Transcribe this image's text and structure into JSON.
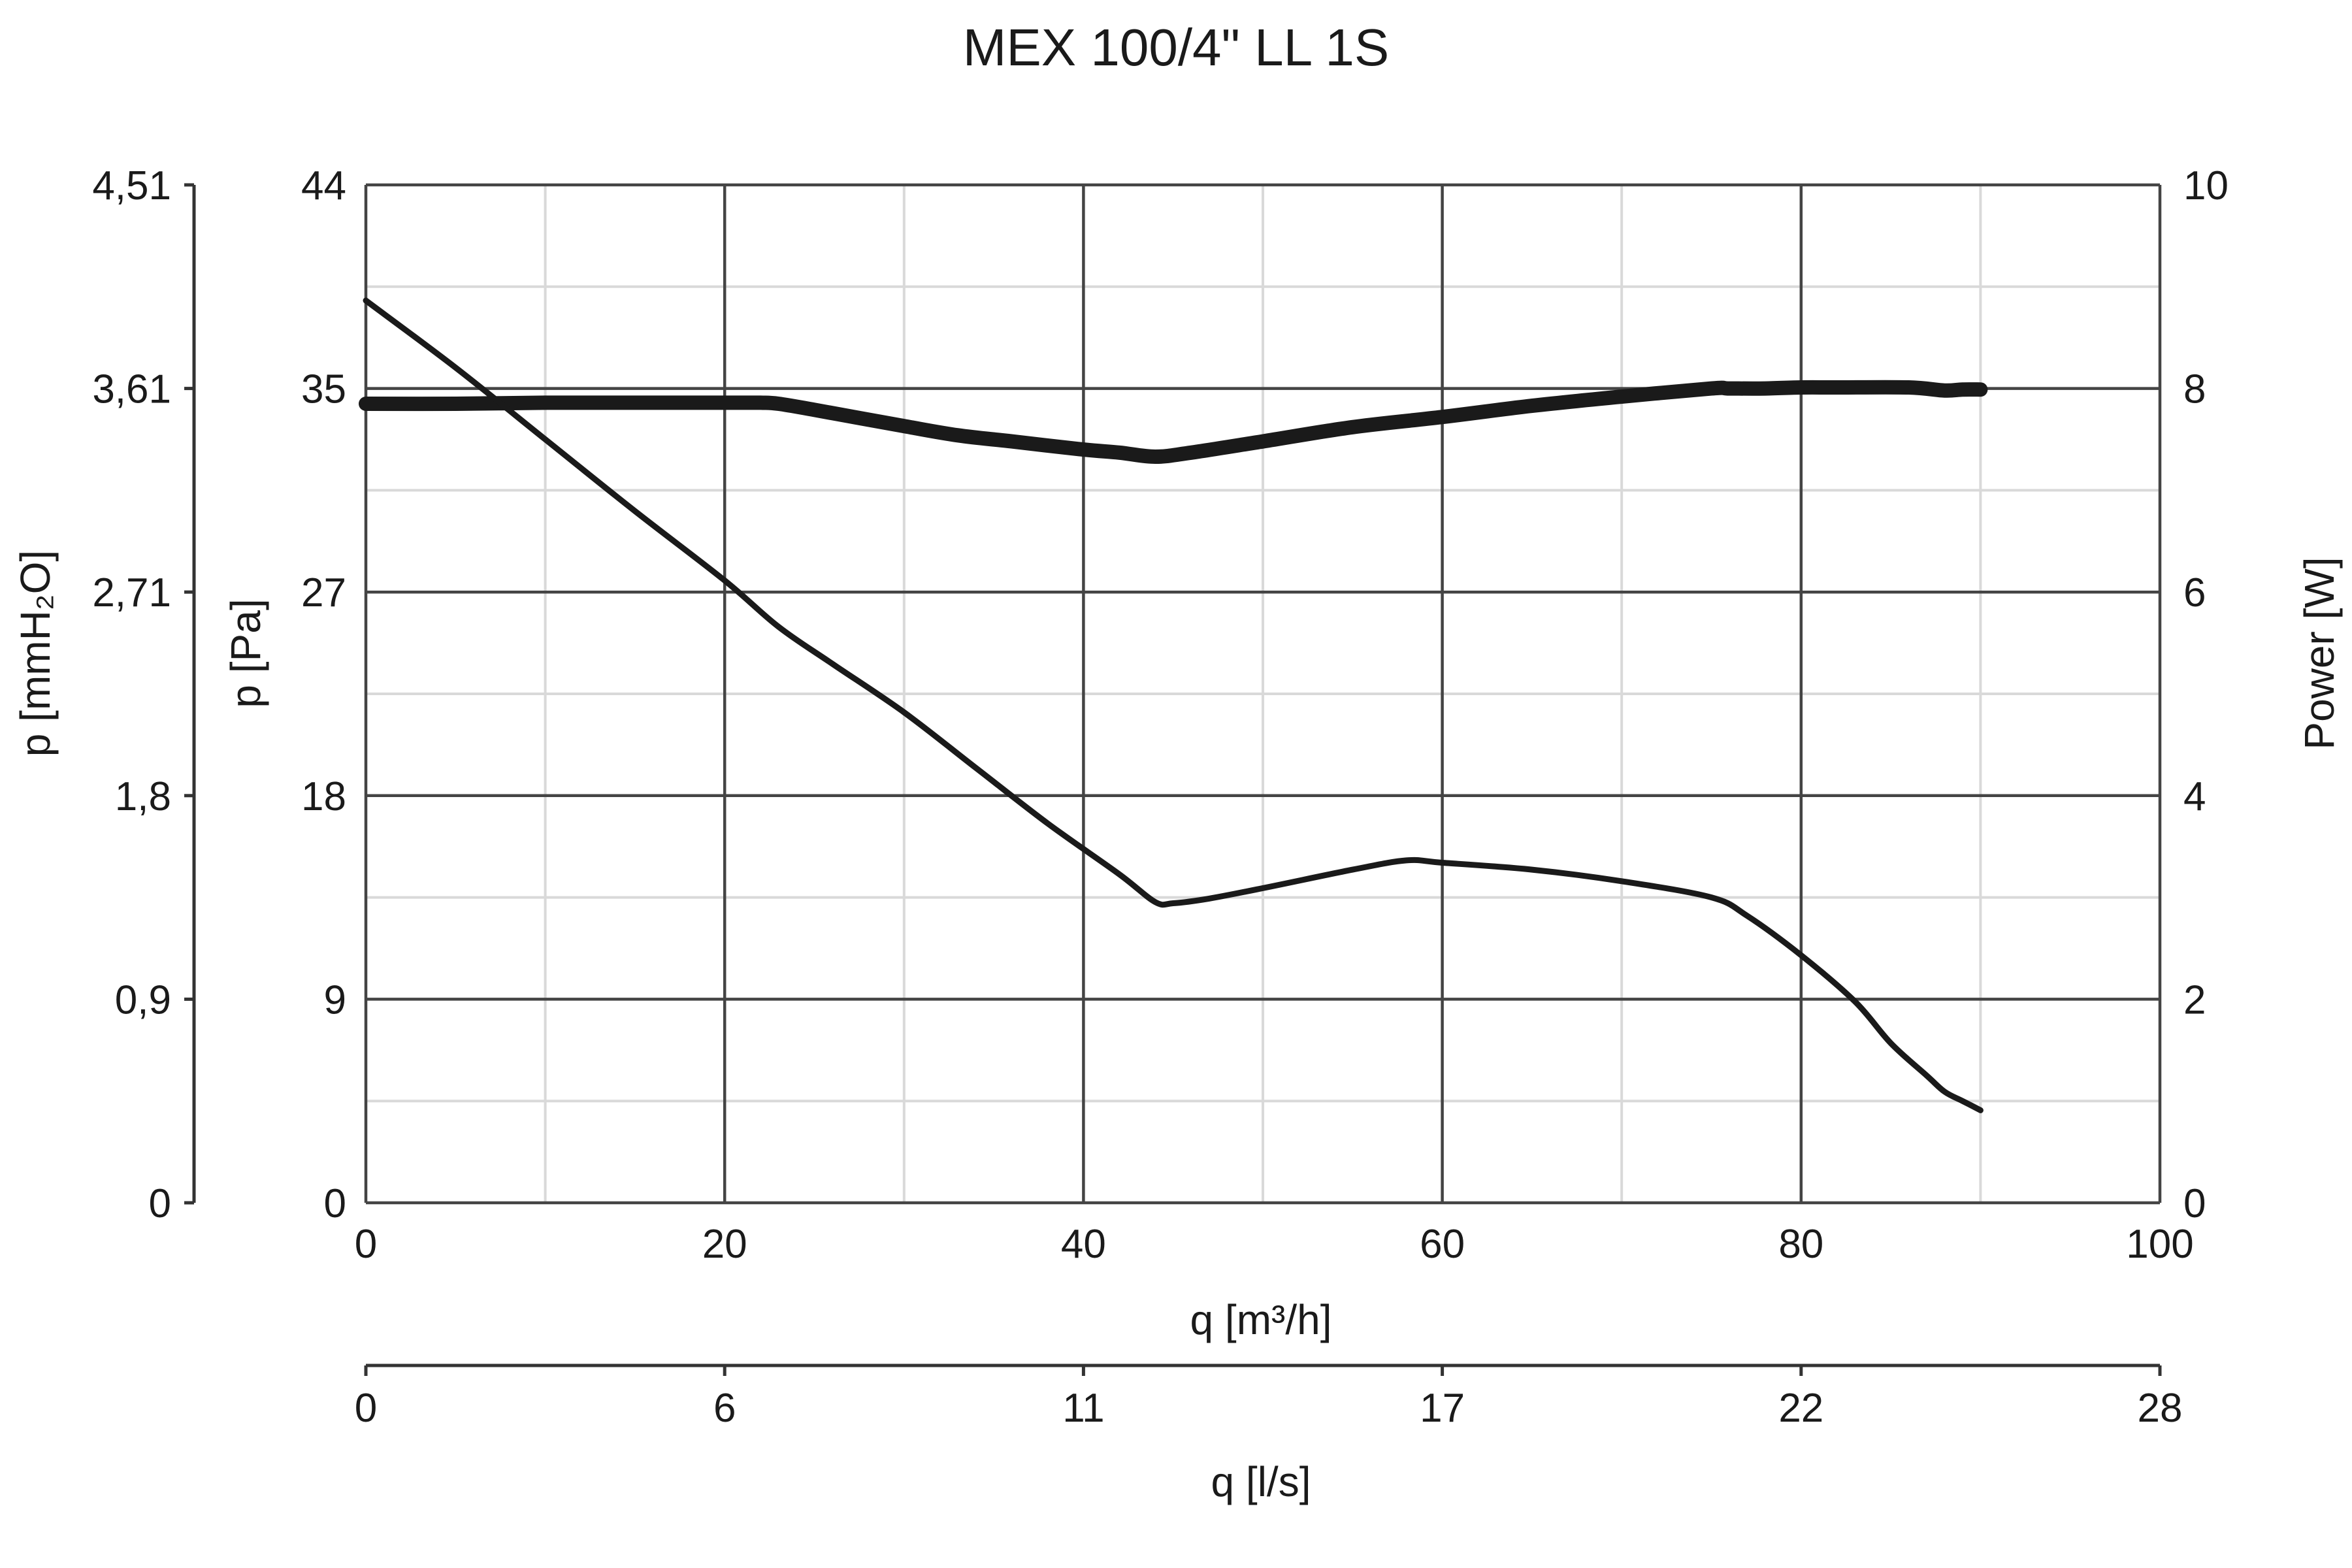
{
  "chart_data": {
    "type": "line",
    "title": "MEX 100/4\" LL 1S",
    "xlabel": "q [m³/h]",
    "xlabel_secondary": "q [l/s]",
    "ylabel": "p [Pa]",
    "ylabel_secondary": "p [mmH₂O]",
    "ylabel_right": "Power [W]",
    "xlim": [
      0,
      100
    ],
    "ylim": [
      0,
      44
    ],
    "ylim_right": [
      0,
      10
    ],
    "grid": true,
    "x_ticks": [
      "0",
      "20",
      "40",
      "60",
      "80",
      "100"
    ],
    "x_ticks_secondary": [
      "0",
      "6",
      "11",
      "17",
      "22",
      "28"
    ],
    "y_ticks": [
      "0",
      "9",
      "18",
      "27",
      "35",
      "44"
    ],
    "y_ticks_secondary": [
      "0",
      "0,9",
      "1,8",
      "2,71",
      "3,61",
      "4,51"
    ],
    "y_ticks_right": [
      "0",
      "2",
      "4",
      "6",
      "8",
      "10"
    ],
    "series": [
      {
        "axis": "right",
        "style": "thick",
        "x": [
          0,
          5,
          10,
          15,
          20,
          22,
          23,
          25,
          30,
          33,
          36,
          40,
          42,
          44,
          46,
          50,
          55,
          60,
          65,
          70,
          75,
          76,
          78,
          80,
          82,
          86,
          88,
          89,
          90
        ],
        "y": [
          7.85,
          7.85,
          7.86,
          7.86,
          7.86,
          7.86,
          7.85,
          7.79,
          7.63,
          7.54,
          7.48,
          7.4,
          7.37,
          7.33,
          7.37,
          7.48,
          7.62,
          7.72,
          7.83,
          7.92,
          8.0,
          8.0,
          8.0,
          8.01,
          8.01,
          8.01,
          7.98,
          7.99,
          7.99
        ]
      },
      {
        "axis": "left",
        "style": "thin",
        "x": [
          0,
          5,
          10,
          15,
          20,
          23,
          26,
          30,
          34,
          38,
          42,
          44,
          45,
          47,
          50,
          55,
          58,
          60,
          65,
          70,
          75,
          77,
          80,
          83,
          85,
          87,
          88,
          89,
          90
        ],
        "y": [
          39,
          36.1,
          33.0,
          29.9,
          26.9,
          24.9,
          23.3,
          21.2,
          18.8,
          16.4,
          14.2,
          13.0,
          12.95,
          13.15,
          13.6,
          14.4,
          14.8,
          14.7,
          14.4,
          13.9,
          13.2,
          12.4,
          10.7,
          8.7,
          6.9,
          5.5,
          4.8,
          4.4,
          4.0
        ]
      }
    ]
  }
}
